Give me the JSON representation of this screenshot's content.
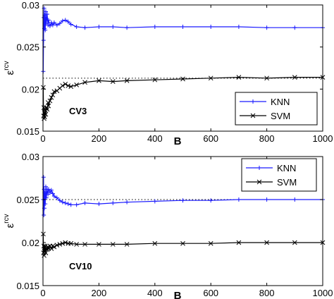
{
  "colors": {
    "knn": "#1a1aff",
    "svm": "#000000",
    "reference_line": "#000000",
    "axes": "#000000",
    "background": "#ffffff"
  },
  "chart_data": [
    {
      "type": "line",
      "annotation": "CV3",
      "xlabel": "B",
      "ylabel_base": "ε",
      "ylabel_sup": "rcv",
      "xlim": [
        0,
        1000
      ],
      "ylim": [
        0.015,
        0.03
      ],
      "xticks": [
        0,
        200,
        400,
        600,
        800,
        1000
      ],
      "yticks": [
        0.015,
        0.02,
        0.025,
        0.03
      ],
      "xtick_labels": [
        "0",
        "200",
        "400",
        "600",
        "800",
        "1000"
      ],
      "ytick_labels": [
        "0.015",
        "0.02",
        "0.025",
        "0.03"
      ],
      "legend": {
        "position": "lower-right",
        "entries": [
          "KNN",
          "SVM"
        ]
      },
      "reference_line": {
        "y": 0.0213,
        "x_range": [
          0,
          1000
        ],
        "style": "dotted"
      },
      "series": [
        {
          "name": "KNN",
          "marker": "+",
          "x": [
            1,
            2,
            3,
            4,
            5,
            6,
            8,
            10,
            12,
            15,
            18,
            20,
            25,
            30,
            35,
            40,
            50,
            60,
            70,
            80,
            90,
            100,
            120,
            150,
            200,
            250,
            300,
            400,
            500,
            600,
            700,
            800,
            900,
            1000
          ],
          "values": [
            0.0221,
            0.0258,
            0.0285,
            0.0296,
            0.0272,
            0.0288,
            0.027,
            0.0292,
            0.0278,
            0.0289,
            0.0276,
            0.0282,
            0.0275,
            0.0279,
            0.0276,
            0.0279,
            0.0276,
            0.0278,
            0.0281,
            0.0282,
            0.028,
            0.0277,
            0.0274,
            0.0273,
            0.0274,
            0.0274,
            0.0273,
            0.0274,
            0.0274,
            0.0274,
            0.0274,
            0.0273,
            0.0273,
            0.0273
          ]
        },
        {
          "name": "SVM",
          "marker": "x",
          "x": [
            1,
            2,
            3,
            4,
            5,
            6,
            8,
            10,
            12,
            15,
            18,
            20,
            25,
            30,
            35,
            40,
            50,
            60,
            70,
            80,
            90,
            100,
            120,
            150,
            200,
            250,
            300,
            400,
            500,
            600,
            700,
            800,
            900,
            1000
          ],
          "values": [
            0.0202,
            0.0168,
            0.0178,
            0.0165,
            0.0172,
            0.0167,
            0.0175,
            0.017,
            0.0178,
            0.0176,
            0.0184,
            0.018,
            0.0186,
            0.019,
            0.0193,
            0.0197,
            0.0198,
            0.0201,
            0.0204,
            0.0206,
            0.0204,
            0.0203,
            0.0205,
            0.0208,
            0.021,
            0.0209,
            0.021,
            0.0211,
            0.0212,
            0.0213,
            0.0214,
            0.0213,
            0.0214,
            0.0214
          ]
        }
      ]
    },
    {
      "type": "line",
      "annotation": "CV10",
      "xlabel": "B",
      "ylabel_base": "ε",
      "ylabel_sup": "rcv",
      "xlim": [
        0,
        1000
      ],
      "ylim": [
        0.015,
        0.03
      ],
      "xticks": [
        0,
        200,
        400,
        600,
        800,
        1000
      ],
      "yticks": [
        0.015,
        0.02,
        0.025,
        0.03
      ],
      "xtick_labels": [
        "0",
        "200",
        "400",
        "600",
        "800",
        "1000"
      ],
      "ytick_labels": [
        "0.015",
        "0.02",
        "0.025",
        "0.03"
      ],
      "legend": {
        "position": "top-right",
        "entries": [
          "KNN",
          "SVM"
        ]
      },
      "reference_line": {
        "y": 0.025,
        "x_range": [
          0,
          1000
        ],
        "style": "dotted"
      },
      "series": [
        {
          "name": "KNN",
          "marker": "+",
          "x": [
            1,
            2,
            3,
            4,
            5,
            6,
            8,
            10,
            12,
            15,
            18,
            20,
            25,
            30,
            35,
            40,
            50,
            60,
            70,
            80,
            90,
            100,
            120,
            150,
            200,
            250,
            300,
            400,
            500,
            600,
            700,
            800,
            900,
            1000
          ],
          "values": [
            0.025,
            0.0276,
            0.0232,
            0.0262,
            0.024,
            0.0258,
            0.0245,
            0.0265,
            0.0252,
            0.0262,
            0.0256,
            0.0262,
            0.0258,
            0.0261,
            0.0257,
            0.0254,
            0.0252,
            0.0249,
            0.0247,
            0.0246,
            0.0245,
            0.0244,
            0.0244,
            0.0246,
            0.0245,
            0.0246,
            0.0247,
            0.0248,
            0.0249,
            0.0249,
            0.025,
            0.025,
            0.025,
            0.025
          ]
        },
        {
          "name": "SVM",
          "marker": "x",
          "x": [
            1,
            2,
            3,
            4,
            5,
            6,
            8,
            10,
            12,
            15,
            18,
            20,
            25,
            30,
            35,
            40,
            50,
            60,
            70,
            80,
            90,
            100,
            120,
            150,
            200,
            250,
            300,
            400,
            500,
            600,
            700,
            800,
            900,
            1000
          ],
          "values": [
            0.021,
            0.0188,
            0.0196,
            0.0185,
            0.0194,
            0.019,
            0.0196,
            0.0188,
            0.0193,
            0.0192,
            0.0195,
            0.0193,
            0.0196,
            0.0193,
            0.0196,
            0.0195,
            0.0197,
            0.0198,
            0.0199,
            0.02,
            0.0199,
            0.0199,
            0.0198,
            0.0198,
            0.0198,
            0.0198,
            0.0198,
            0.0199,
            0.0199,
            0.0199,
            0.02,
            0.02,
            0.02,
            0.02
          ]
        }
      ]
    }
  ]
}
